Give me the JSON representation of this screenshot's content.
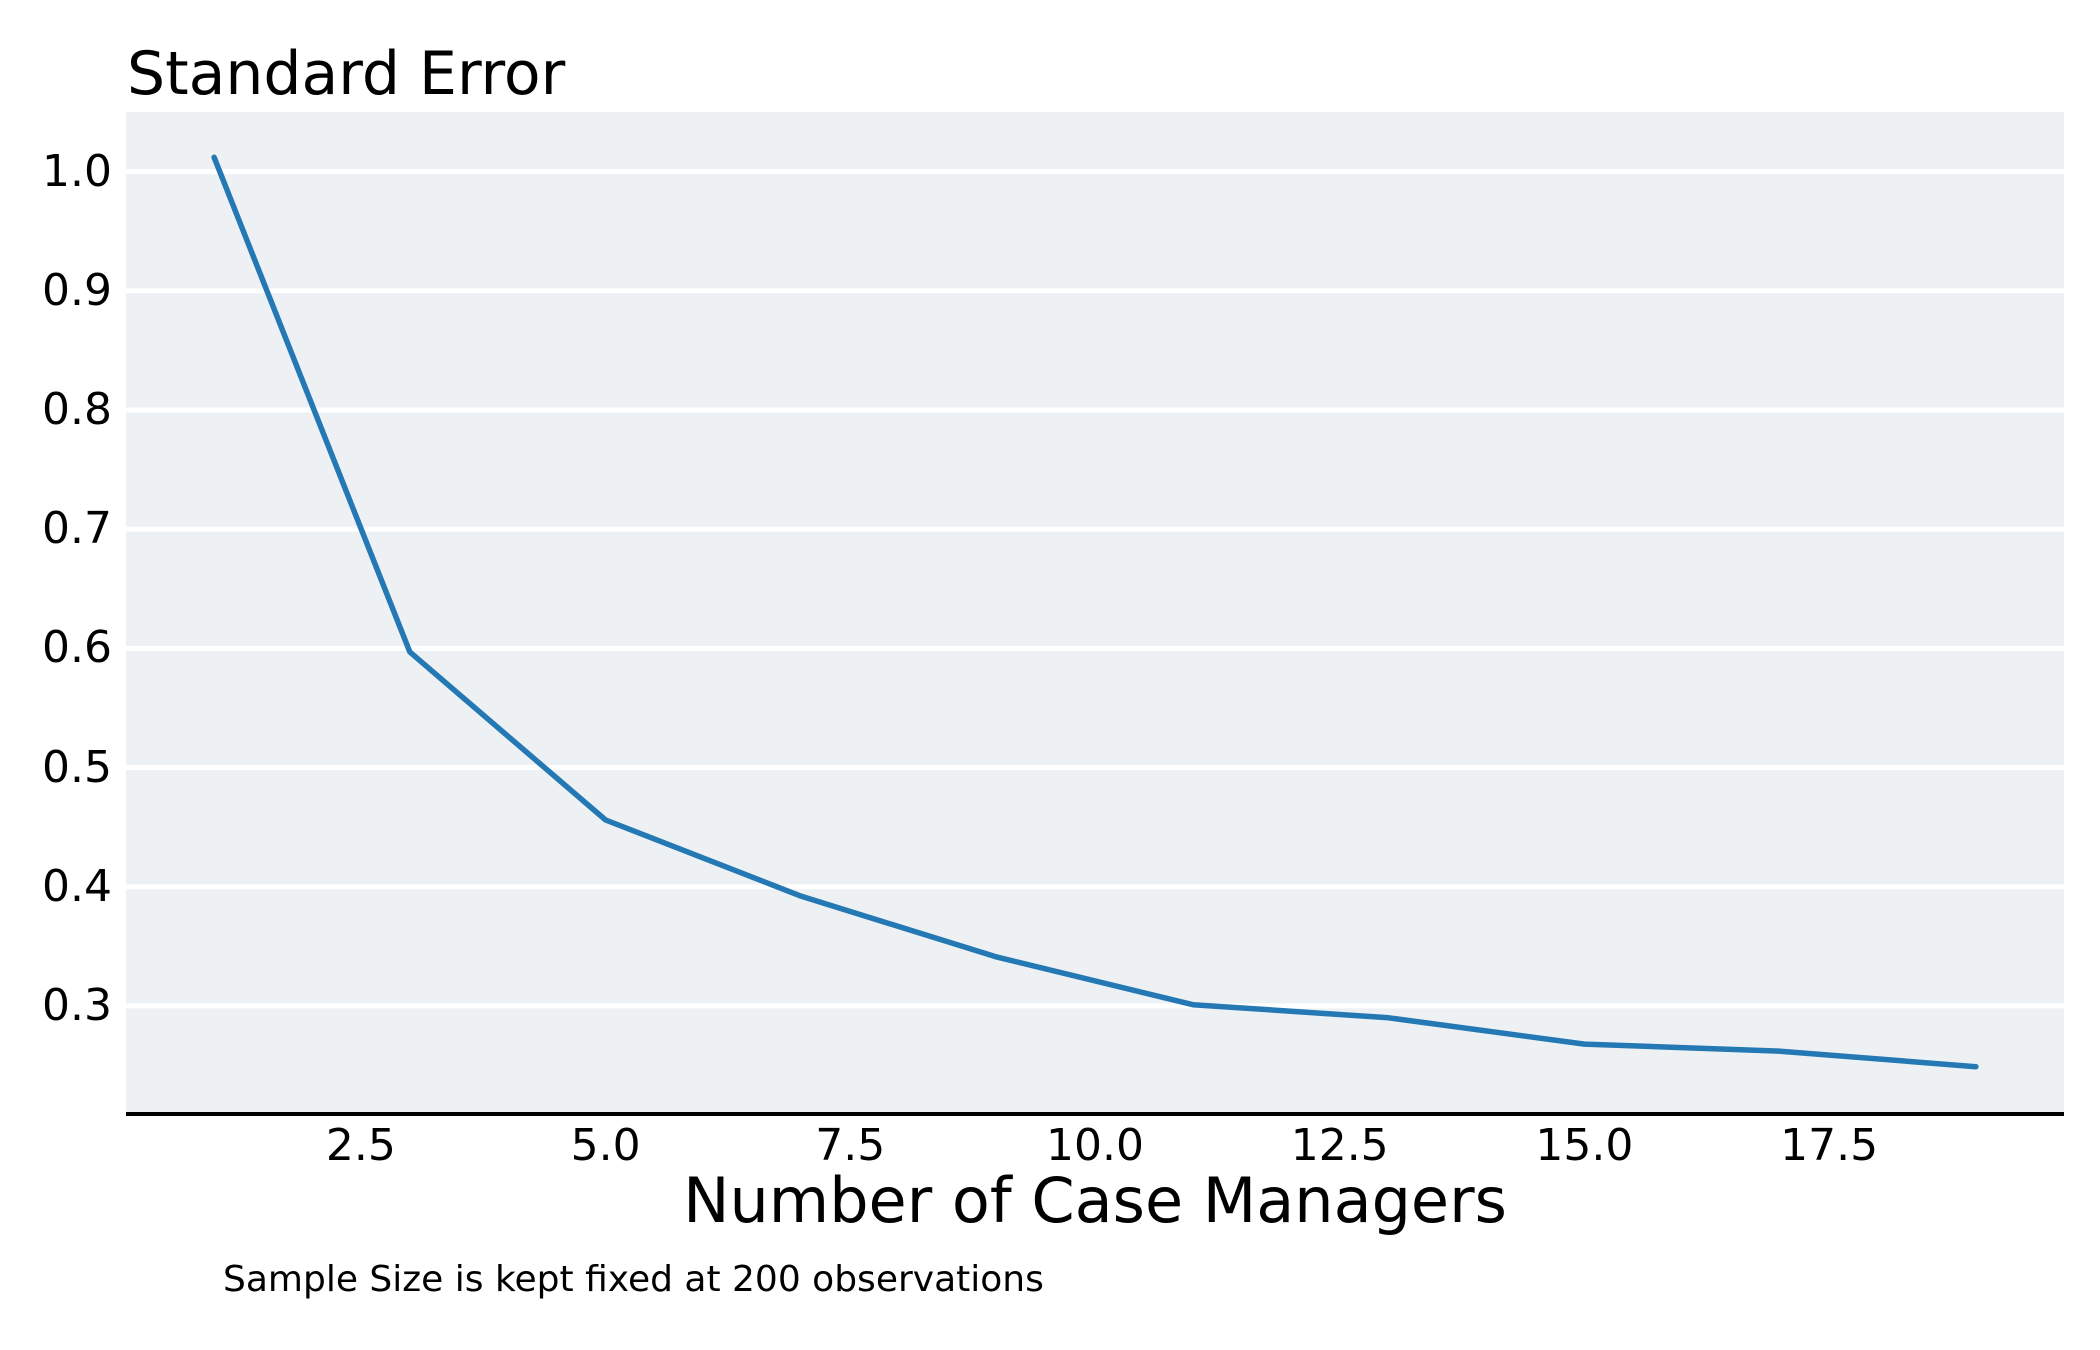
{
  "figure": {
    "title": "Standard Error",
    "xlabel": "Number of Case Managers",
    "caption": "Sample Size is kept fixed at 200 observations"
  },
  "chart_data": {
    "type": "line",
    "title": "Standard Error",
    "xlabel": "Number of Case Managers",
    "ylabel": "",
    "annotation": "Sample Size is kept fixed at 200 observations",
    "x": [
      1,
      3,
      5,
      7,
      9,
      11,
      13,
      15,
      17,
      19
    ],
    "y": [
      1.012,
      0.597,
      0.456,
      0.392,
      0.341,
      0.301,
      0.29,
      0.268,
      0.262,
      0.249
    ],
    "series": [
      {
        "name": "Standard Error",
        "x": [
          1,
          3,
          5,
          7,
          9,
          11,
          13,
          15,
          17,
          19
        ],
        "values": [
          1.012,
          0.597,
          0.456,
          0.392,
          0.341,
          0.301,
          0.29,
          0.268,
          0.262,
          0.249
        ]
      }
    ],
    "xlim": [
      0.1,
      19.9
    ],
    "ylim": [
      0.211,
      1.05
    ],
    "x_ticks": [
      2.5,
      5.0,
      7.5,
      10.0,
      12.5,
      15.0,
      17.5
    ],
    "x_tick_labels": [
      "2.5",
      "5.0",
      "7.5",
      "10.0",
      "12.5",
      "15.0",
      "17.5"
    ],
    "y_ticks": [
      0.3,
      0.4,
      0.5,
      0.6,
      0.7,
      0.8,
      0.9,
      1.0
    ],
    "y_tick_labels": [
      "0.3",
      "0.4",
      "0.5",
      "0.6",
      "0.7",
      "0.8",
      "0.9",
      "1.0"
    ],
    "grid": "horizontal-only",
    "legend": false,
    "colors": {
      "line": "#2478b4",
      "plot_bg": "#edf1f4",
      "gridline": "#ffffff",
      "spine": "#000000",
      "text": "#000000"
    }
  }
}
